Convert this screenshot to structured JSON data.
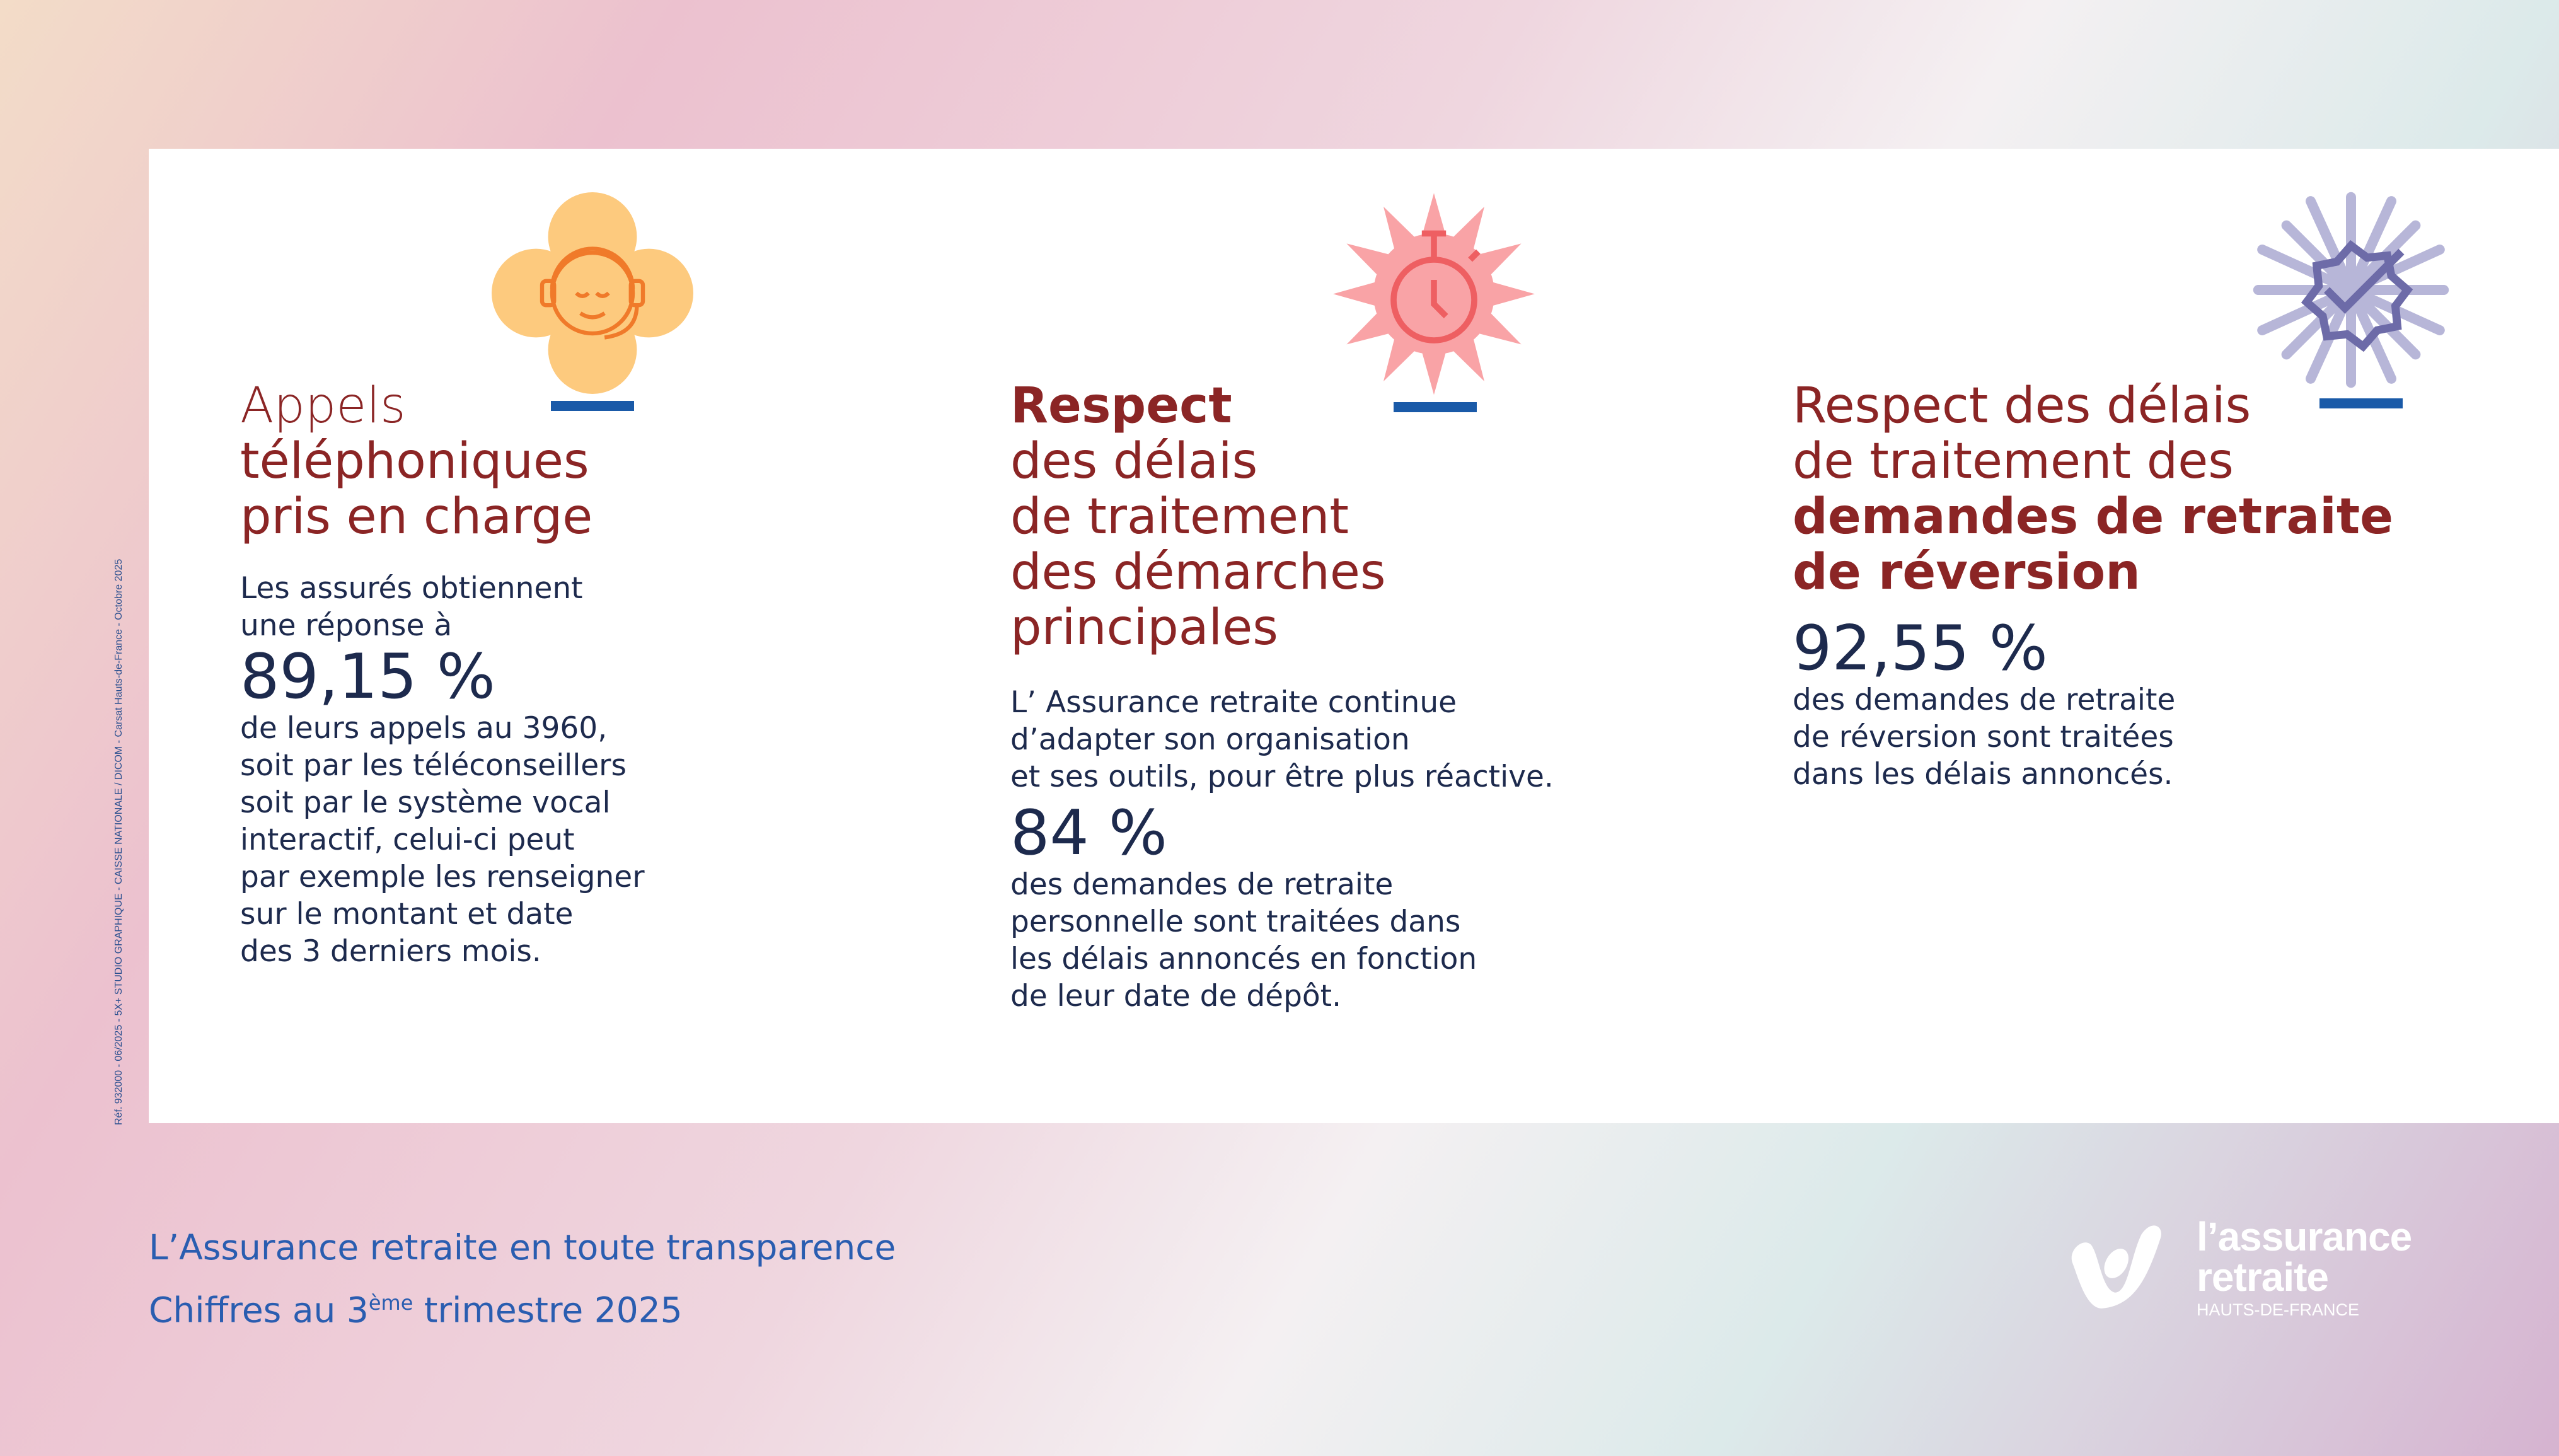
{
  "colors": {
    "heading": "#8b2525",
    "text": "#1d2a4d",
    "accent": "#1a5aa8",
    "footer": "#2a5db0"
  },
  "side_text": "Réf. 932000 - 06/2025 - 5X+ STUDIO GRAPHIQUE - CAISSE NATIONALE / DICOM - Carsat Hauts-de-France - Octobre 2025",
  "columns": [
    {
      "icon": "headset-agent-icon",
      "title_light": "Appels",
      "title_rest": [
        "téléphoniques",
        "pris en charge"
      ],
      "intro": [
        "Les assurés obtiennent",
        "une réponse à"
      ],
      "value": "89,15 %",
      "detail": [
        "de leurs appels au 3960,",
        "soit par les téléconseillers",
        "soit par le système vocal",
        "interactif, celui-ci peut",
        "par exemple les renseigner",
        "sur le montant et date",
        "des 3 derniers mois."
      ]
    },
    {
      "icon": "stopwatch-icon",
      "title_bold": "Respect",
      "title_rest": [
        "des délais",
        "de traitement",
        "des démarches",
        "principales"
      ],
      "intro": [
        "L’ Assurance retraite continue",
        "d’adapter son organisation",
        "et ses outils, pour être plus réactive."
      ],
      "value": "84 %",
      "detail": [
        "des demandes de retraite",
        "personnelle sont traitées dans",
        "les délais annoncés en fonction",
        "de leur date de dépôt."
      ]
    },
    {
      "icon": "badge-check-icon",
      "title_light": [
        "Respect des délais",
        "de traitement des"
      ],
      "title_bold": [
        "demandes de retraite",
        "de réversion"
      ],
      "value": "92,55 %",
      "detail": [
        "des demandes de retraite",
        "de réversion sont traitées",
        "dans les délais annoncés."
      ]
    }
  ],
  "footer": {
    "line1": "L’Assurance retraite en toute transparence",
    "line2_pre": "Chiffres au 3",
    "line2_sup": "ème",
    "line2_post": " trimestre 2025"
  },
  "logo": {
    "line1": "l’assurance",
    "line2": "retraite",
    "region": "HAUTS-DE-FRANCE"
  }
}
